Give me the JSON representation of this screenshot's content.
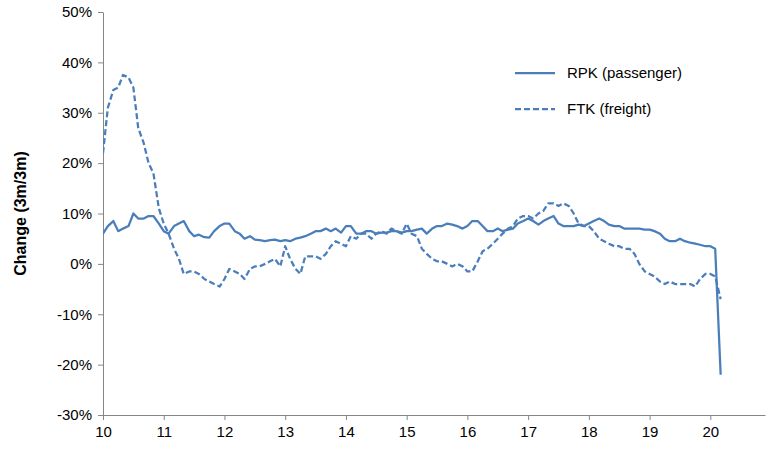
{
  "chart_data": {
    "type": "line",
    "y_label": "Change (3m/3m)",
    "x": [
      10.0,
      10.08,
      10.17,
      10.25,
      10.33,
      10.42,
      10.5,
      10.58,
      10.67,
      10.75,
      10.83,
      10.92,
      11.0,
      11.08,
      11.17,
      11.25,
      11.33,
      11.42,
      11.5,
      11.58,
      11.67,
      11.75,
      11.83,
      11.92,
      12.0,
      12.08,
      12.17,
      12.25,
      12.33,
      12.42,
      12.5,
      12.58,
      12.67,
      12.75,
      12.83,
      12.92,
      13.0,
      13.08,
      13.17,
      13.25,
      13.33,
      13.42,
      13.5,
      13.58,
      13.67,
      13.75,
      13.83,
      13.92,
      14.0,
      14.08,
      14.17,
      14.25,
      14.33,
      14.42,
      14.5,
      14.58,
      14.67,
      14.75,
      14.83,
      14.92,
      15.0,
      15.08,
      15.17,
      15.25,
      15.33,
      15.42,
      15.5,
      15.58,
      15.67,
      15.75,
      15.83,
      15.92,
      16.0,
      16.08,
      16.17,
      16.25,
      16.33,
      16.42,
      16.5,
      16.58,
      16.67,
      16.75,
      16.83,
      16.92,
      17.0,
      17.08,
      17.17,
      17.25,
      17.33,
      17.42,
      17.5,
      17.58,
      17.67,
      17.75,
      17.83,
      17.92,
      18.0,
      18.08,
      18.17,
      18.25,
      18.33,
      18.42,
      18.5,
      18.58,
      18.67,
      18.75,
      18.83,
      18.92,
      19.0,
      19.08,
      19.17,
      19.25,
      19.33,
      19.42,
      19.5,
      19.58,
      19.67,
      19.75,
      19.83,
      19.92,
      20.0,
      20.08,
      20.17
    ],
    "series": [
      {
        "name": "RPK (passenger)",
        "color": "#4a7ebb",
        "line_style": "solid",
        "values": [
          6,
          7.5,
          8.5,
          6.5,
          7,
          7.5,
          10,
          9,
          9,
          9.5,
          9.5,
          8,
          6.5,
          6,
          7.5,
          8,
          8.5,
          6.5,
          5.5,
          5.8,
          5.3,
          5.2,
          6.5,
          7.5,
          8,
          8,
          6.5,
          6,
          5,
          5.5,
          4.8,
          4.7,
          4.5,
          4.7,
          4.8,
          4.5,
          4.7,
          4.5,
          5,
          5.2,
          5.5,
          6,
          6.5,
          6.5,
          7,
          6.5,
          7,
          6.2,
          7.5,
          7.5,
          6,
          6,
          6.5,
          6.5,
          6,
          6.2,
          6.2,
          6.5,
          6.5,
          6.2,
          6.5,
          6.5,
          6.8,
          7,
          6,
          7,
          7.5,
          7.5,
          8,
          7.8,
          7.5,
          7,
          7.5,
          8.5,
          8.5,
          7.5,
          6.5,
          6.5,
          7,
          6.5,
          6.8,
          7,
          8,
          8.5,
          9,
          8.5,
          7.8,
          8.5,
          9,
          9.5,
          8,
          7.5,
          7.5,
          7.5,
          7.8,
          7.5,
          8,
          8.5,
          9,
          8.5,
          7.8,
          7.5,
          7.5,
          7,
          7,
          7,
          7,
          6.8,
          6.8,
          6.5,
          6,
          5,
          4.5,
          4.5,
          5,
          4.5,
          4.2,
          4,
          3.8,
          3.5,
          3.5,
          3,
          -22
        ]
      },
      {
        "name": "FTK (freight)",
        "color": "#4a7ebb",
        "line_style": "dashed",
        "values": [
          22,
          31,
          34.5,
          35,
          37.5,
          37,
          35,
          27,
          24,
          20,
          18,
          11,
          8,
          6,
          3,
          1,
          -2,
          -1.5,
          -1.5,
          -2,
          -3,
          -3.5,
          -4,
          -4.5,
          -3,
          -1,
          -1.5,
          -2,
          -3,
          -1,
          -0.5,
          -0.5,
          0,
          0.5,
          1,
          -0.5,
          3.5,
          1,
          -1,
          -2,
          1.5,
          1.5,
          1.5,
          1,
          2,
          3.5,
          4.5,
          4,
          3.5,
          5.5,
          5,
          6,
          6,
          5,
          6,
          6.5,
          6,
          7,
          6.5,
          6,
          8,
          6,
          5.5,
          3,
          2,
          1,
          0.5,
          0.5,
          0,
          -0.5,
          0,
          -0.5,
          -1.5,
          -1.5,
          0.5,
          2.5,
          3,
          4,
          5,
          6,
          7,
          7.5,
          9,
          9.5,
          9.5,
          9,
          10,
          10.5,
          12,
          12,
          11.5,
          12,
          11.5,
          10,
          8,
          7.5,
          7.5,
          6.5,
          5,
          4.5,
          4,
          3.5,
          3.5,
          3,
          3,
          2,
          0,
          -1.5,
          -2,
          -2.5,
          -3.5,
          -4,
          -3.5,
          -4,
          -4,
          -4,
          -4,
          -4.5,
          -3,
          -2,
          -2,
          -2.5,
          -7
        ]
      }
    ],
    "xlim": [
      10,
      20.9
    ],
    "xticks": [
      10,
      11,
      12,
      13,
      14,
      15,
      16,
      17,
      18,
      19,
      20
    ],
    "ylim": [
      -30,
      50
    ],
    "yticks": [
      {
        "value": -30,
        "label": "-30%"
      },
      {
        "value": -20,
        "label": "-20%"
      },
      {
        "value": -10,
        "label": "-10%"
      },
      {
        "value": 0,
        "label": "0%"
      },
      {
        "value": 10,
        "label": "10%"
      },
      {
        "value": 20,
        "label": "20%"
      },
      {
        "value": 30,
        "label": "30%"
      },
      {
        "value": 40,
        "label": "40%"
      },
      {
        "value": 50,
        "label": "50%"
      }
    ],
    "grid": false,
    "legend": "top-right"
  }
}
